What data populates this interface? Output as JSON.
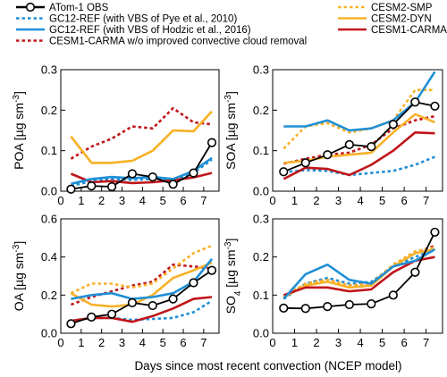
{
  "chart_data": {
    "type": "line",
    "xlabel": "Days since most recent convection (NCEP model)",
    "x_ticks": [
      0,
      1,
      2,
      3,
      4,
      5,
      6,
      7
    ],
    "x_range": [
      0,
      7.75
    ],
    "legend": {
      "placement": "top",
      "entries": [
        {
          "name": "ATom-1 OBS",
          "series": "obs",
          "column": "left"
        },
        {
          "name": "GC12-REF (with VBS of Pye et al., 2010)",
          "series": "gc_pye",
          "column": "left"
        },
        {
          "name": "GC12-REF (with VBS of Hodzic et al., 2016)",
          "series": "gc_hodzic",
          "column": "left"
        },
        {
          "name": "CESM1-CARMA w/o improved convective cloud removal",
          "series": "carma_wo",
          "column": "left"
        },
        {
          "name": "CESM2-SMP",
          "series": "cesm2_smp",
          "column": "right"
        },
        {
          "name": "CESM2-DYN",
          "series": "cesm2_dyn",
          "column": "right"
        },
        {
          "name": "CESM1-CARMA",
          "series": "cesm1_carma",
          "column": "right"
        }
      ]
    },
    "series_styles": {
      "obs": {
        "color": "#000000",
        "dash": "solid",
        "marker": "open-circle"
      },
      "gc_pye": {
        "color": "#1f8fd6",
        "dash": "dotted",
        "marker": "none"
      },
      "gc_hodzic": {
        "color": "#1f8fd6",
        "dash": "solid",
        "marker": "none"
      },
      "carma_wo": {
        "color": "#c0151a",
        "dash": "dotted",
        "marker": "none"
      },
      "cesm2_smp": {
        "color": "#f7b229",
        "dash": "dotted",
        "marker": "none"
      },
      "cesm2_dyn": {
        "color": "#f7b229",
        "dash": "solid",
        "marker": "none"
      },
      "cesm1_carma": {
        "color": "#c0151a",
        "dash": "solid",
        "marker": "none"
      }
    },
    "panels": [
      {
        "id": "poa",
        "ylabel": "POA [µg sm⁻³]",
        "ylabel_main": "POA [µg sm",
        "ylabel_sup": "-3",
        "ylabel_end": "]",
        "ylim": [
          0,
          0.3
        ],
        "yticks": [
          0.0,
          0.1,
          0.2,
          0.3
        ],
        "ytick_labels": [
          "0.0",
          "0.1",
          "0.2",
          "0.3"
        ],
        "x": [
          0.5,
          1.5,
          2.5,
          3.5,
          4.5,
          5.5,
          6.5,
          7.4
        ],
        "series": {
          "carma_wo": [
            0.08,
            0.11,
            0.13,
            0.16,
            0.155,
            0.205,
            0.17,
            0.165
          ],
          "cesm2_smp": [
            0.135,
            0.07,
            0.07,
            0.075,
            0.1,
            0.15,
            0.148,
            0.197
          ],
          "cesm2_dyn": [
            0.135,
            0.07,
            0.07,
            0.075,
            0.1,
            0.15,
            0.148,
            0.197
          ],
          "cesm1_carma": [
            0.043,
            0.022,
            0.025,
            0.02,
            0.022,
            0.027,
            0.034,
            0.045
          ],
          "gc_pye": [
            0.013,
            0.025,
            0.03,
            0.028,
            0.03,
            0.027,
            0.045,
            0.078
          ],
          "gc_hodzic": [
            0.018,
            0.03,
            0.035,
            0.032,
            0.035,
            0.03,
            0.05,
            0.082
          ],
          "obs": [
            0.005,
            0.013,
            0.011,
            0.043,
            0.035,
            0.017,
            0.045,
            0.12
          ]
        }
      },
      {
        "id": "soa",
        "ylabel": "SOA [µg sm⁻³]",
        "ylabel_main": "SOA [µg sm",
        "ylabel_sup": "-3",
        "ylabel_end": "]",
        "ylim": [
          0,
          0.3
        ],
        "yticks": [
          0.0,
          0.1,
          0.2,
          0.3
        ],
        "ytick_labels": [
          "0.0",
          "0.1",
          "0.2",
          "0.3"
        ],
        "x": [
          0.5,
          1.5,
          2.5,
          3.5,
          4.5,
          5.5,
          6.5,
          7.4
        ],
        "series": {
          "gc_pye": [
            0.047,
            0.052,
            0.05,
            0.04,
            0.045,
            0.05,
            0.065,
            0.085
          ],
          "carma_wo": [
            0.068,
            0.08,
            0.09,
            0.095,
            0.115,
            0.155,
            0.175,
            0.185
          ],
          "cesm2_smp": [
            0.105,
            0.16,
            0.168,
            0.145,
            0.155,
            0.175,
            0.25,
            0.25
          ],
          "cesm2_dyn": [
            0.07,
            0.075,
            0.085,
            0.09,
            0.095,
            0.145,
            0.19,
            0.17
          ],
          "cesm1_carma": [
            0.03,
            0.058,
            0.055,
            0.04,
            0.065,
            0.1,
            0.145,
            0.143
          ],
          "gc_hodzic": [
            0.16,
            0.16,
            0.175,
            0.15,
            0.155,
            0.175,
            0.22,
            0.295
          ],
          "obs": [
            0.048,
            0.07,
            0.09,
            0.115,
            0.11,
            0.165,
            0.22,
            0.21
          ]
        }
      },
      {
        "id": "oa",
        "ylabel": "OA [µg sm⁻³]",
        "ylabel_main": "OA [µg sm",
        "ylabel_sup": "-3",
        "ylabel_end": "]",
        "ylim": [
          0,
          0.6
        ],
        "yticks": [
          0.0,
          0.2,
          0.4,
          0.6
        ],
        "ytick_labels": [
          "0.0",
          "0.2",
          "0.4",
          "0.6"
        ],
        "x": [
          0.5,
          1.5,
          2.5,
          3.5,
          4.5,
          5.5,
          6.5,
          7.4
        ],
        "series": {
          "gc_pye": [
            0.065,
            0.08,
            0.08,
            0.07,
            0.075,
            0.08,
            0.11,
            0.17
          ],
          "carma_wo": [
            0.15,
            0.19,
            0.22,
            0.25,
            0.27,
            0.36,
            0.35,
            0.34
          ],
          "cesm2_smp": [
            0.21,
            0.26,
            0.26,
            0.24,
            0.26,
            0.34,
            0.42,
            0.46
          ],
          "cesm2_dyn": [
            0.21,
            0.15,
            0.14,
            0.15,
            0.2,
            0.29,
            0.33,
            0.37
          ],
          "cesm1_carma": [
            0.065,
            0.08,
            0.08,
            0.06,
            0.09,
            0.13,
            0.18,
            0.19
          ],
          "gc_hodzic": [
            0.18,
            0.2,
            0.21,
            0.18,
            0.19,
            0.21,
            0.27,
            0.39
          ],
          "obs": [
            0.05,
            0.085,
            0.1,
            0.16,
            0.145,
            0.18,
            0.265,
            0.33
          ]
        }
      },
      {
        "id": "so4",
        "ylabel": "SO₄ [µg sm⁻³]",
        "ylabel_main": "SO",
        "ylabel_sub": "4",
        "ylabel_mid": " [µg sm",
        "ylabel_sup": "-3",
        "ylabel_end": "]",
        "ylim": [
          0,
          0.3
        ],
        "yticks": [
          0.0,
          0.1,
          0.2,
          0.3
        ],
        "ytick_labels": [
          "0.0",
          "0.1",
          "0.2",
          "0.3"
        ],
        "x": [
          0.5,
          1.5,
          2.5,
          3.5,
          4.5,
          5.5,
          6.5,
          7.4
        ],
        "series": {
          "gc_pye": [
            0.09,
            0.13,
            0.145,
            0.13,
            0.135,
            0.175,
            0.2,
            0.22
          ],
          "gc_hodzic": [
            0.09,
            0.155,
            0.18,
            0.14,
            0.13,
            0.175,
            0.19,
            0.22
          ],
          "carma_wo": [
            0.095,
            0.13,
            0.14,
            0.125,
            0.13,
            0.18,
            0.21,
            0.23
          ],
          "cesm2_smp": [
            0.095,
            0.13,
            0.14,
            0.125,
            0.13,
            0.18,
            0.215,
            0.225
          ],
          "cesm2_dyn": [
            0.095,
            0.125,
            0.135,
            0.12,
            0.125,
            0.175,
            0.21,
            0.22
          ],
          "cesm1_carma": [
            0.1,
            0.12,
            0.12,
            0.11,
            0.115,
            0.16,
            0.19,
            0.2
          ],
          "obs": [
            0.066,
            0.065,
            0.07,
            0.075,
            0.077,
            0.1,
            0.16,
            0.265
          ]
        }
      }
    ]
  }
}
